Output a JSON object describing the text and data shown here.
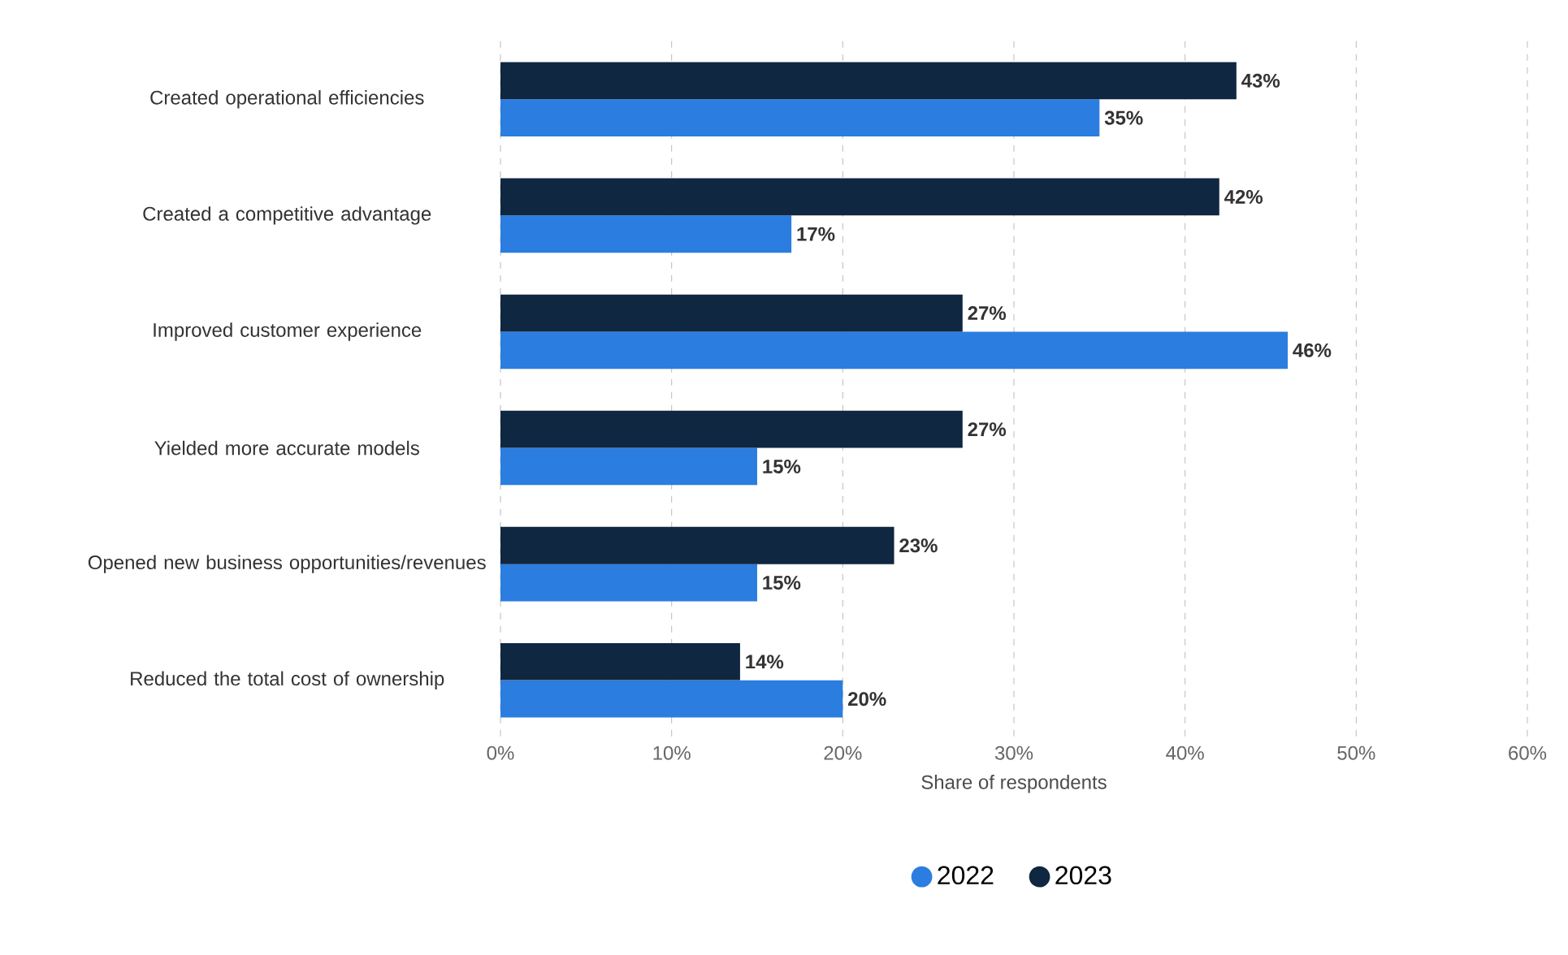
{
  "chart_data": {
    "type": "bar",
    "orientation": "horizontal",
    "categories": [
      "Created operational efficiencies",
      "Created a competitive advantage",
      "Improved customer experience",
      "Yielded more accurate models",
      "Opened new business opportunities/revenues",
      "Reduced the total cost of ownership"
    ],
    "series": [
      {
        "name": "2022",
        "color": "#2b7de0",
        "values": [
          35,
          17,
          46,
          15,
          15,
          20
        ],
        "value_labels": [
          "35%",
          "17%",
          "46%",
          "15%",
          "15%",
          "20%"
        ]
      },
      {
        "name": "2023",
        "color": "#0f2740",
        "values": [
          43,
          42,
          27,
          27,
          23,
          14
        ],
        "value_labels": [
          "43%",
          "42%",
          "27%",
          "27%",
          "23%",
          "14%"
        ]
      }
    ],
    "xlabel": "Share of respondents",
    "xlim": [
      0,
      60
    ],
    "xticks": [
      {
        "value": 0,
        "label": "0%"
      },
      {
        "value": 10,
        "label": "10%"
      },
      {
        "value": 20,
        "label": "20%"
      },
      {
        "value": 30,
        "label": "30%"
      },
      {
        "value": 40,
        "label": "40%"
      },
      {
        "value": 50,
        "label": "50%"
      },
      {
        "value": 60,
        "label": "60%"
      }
    ],
    "grid": "x",
    "legend": "bottom"
  }
}
